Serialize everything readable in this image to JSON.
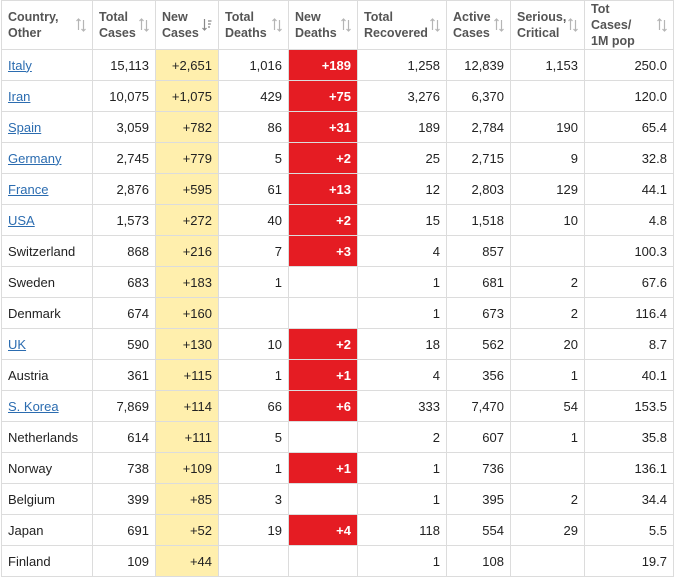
{
  "colors": {
    "new_cases_bg": "#ffefad",
    "new_deaths_bg": "#e51c23",
    "link": "#2b6cb0",
    "border": "#dcdcdc"
  },
  "headers": [
    {
      "line1": "Country,",
      "line2": "Other",
      "icon": "sort-arrows-icon"
    },
    {
      "line1": "Total",
      "line2": "Cases",
      "icon": "sort-arrows-icon"
    },
    {
      "line1": "New",
      "line2": "Cases",
      "icon": "sort-descending-icon"
    },
    {
      "line1": "Total",
      "line2": "Deaths",
      "icon": "sort-arrows-icon"
    },
    {
      "line1": "New",
      "line2": "Deaths",
      "icon": "sort-arrows-icon"
    },
    {
      "line1": "Total",
      "line2": "Recovered",
      "icon": "sort-arrows-icon"
    },
    {
      "line1": "Active",
      "line2": "Cases",
      "icon": "sort-arrows-icon"
    },
    {
      "line1": "Serious,",
      "line2": "Critical",
      "icon": "sort-arrows-icon"
    },
    {
      "line1": "Tot Cases/",
      "line2": "1M pop",
      "icon": "sort-arrows-icon"
    }
  ],
  "rows": [
    {
      "country": "Italy",
      "link": true,
      "total_cases": "15,113",
      "new_cases": "+2,651",
      "total_deaths": "1,016",
      "new_deaths": "+189",
      "recovered": "1,258",
      "active": "12,839",
      "serious": "1,153",
      "per_million": "250.0"
    },
    {
      "country": "Iran",
      "link": true,
      "total_cases": "10,075",
      "new_cases": "+1,075",
      "total_deaths": "429",
      "new_deaths": "+75",
      "recovered": "3,276",
      "active": "6,370",
      "serious": "",
      "per_million": "120.0"
    },
    {
      "country": "Spain",
      "link": true,
      "total_cases": "3,059",
      "new_cases": "+782",
      "total_deaths": "86",
      "new_deaths": "+31",
      "recovered": "189",
      "active": "2,784",
      "serious": "190",
      "per_million": "65.4"
    },
    {
      "country": "Germany",
      "link": true,
      "total_cases": "2,745",
      "new_cases": "+779",
      "total_deaths": "5",
      "new_deaths": "+2",
      "recovered": "25",
      "active": "2,715",
      "serious": "9",
      "per_million": "32.8"
    },
    {
      "country": "France",
      "link": true,
      "total_cases": "2,876",
      "new_cases": "+595",
      "total_deaths": "61",
      "new_deaths": "+13",
      "recovered": "12",
      "active": "2,803",
      "serious": "129",
      "per_million": "44.1"
    },
    {
      "country": "USA",
      "link": true,
      "total_cases": "1,573",
      "new_cases": "+272",
      "total_deaths": "40",
      "new_deaths": "+2",
      "recovered": "15",
      "active": "1,518",
      "serious": "10",
      "per_million": "4.8"
    },
    {
      "country": "Switzerland",
      "link": false,
      "total_cases": "868",
      "new_cases": "+216",
      "total_deaths": "7",
      "new_deaths": "+3",
      "recovered": "4",
      "active": "857",
      "serious": "",
      "per_million": "100.3"
    },
    {
      "country": "Sweden",
      "link": false,
      "total_cases": "683",
      "new_cases": "+183",
      "total_deaths": "1",
      "new_deaths": "",
      "recovered": "1",
      "active": "681",
      "serious": "2",
      "per_million": "67.6"
    },
    {
      "country": "Denmark",
      "link": false,
      "total_cases": "674",
      "new_cases": "+160",
      "total_deaths": "",
      "new_deaths": "",
      "recovered": "1",
      "active": "673",
      "serious": "2",
      "per_million": "116.4"
    },
    {
      "country": "UK",
      "link": true,
      "total_cases": "590",
      "new_cases": "+130",
      "total_deaths": "10",
      "new_deaths": "+2",
      "recovered": "18",
      "active": "562",
      "serious": "20",
      "per_million": "8.7"
    },
    {
      "country": "Austria",
      "link": false,
      "total_cases": "361",
      "new_cases": "+115",
      "total_deaths": "1",
      "new_deaths": "+1",
      "recovered": "4",
      "active": "356",
      "serious": "1",
      "per_million": "40.1"
    },
    {
      "country": "S. Korea",
      "link": true,
      "total_cases": "7,869",
      "new_cases": "+114",
      "total_deaths": "66",
      "new_deaths": "+6",
      "recovered": "333",
      "active": "7,470",
      "serious": "54",
      "per_million": "153.5"
    },
    {
      "country": "Netherlands",
      "link": false,
      "total_cases": "614",
      "new_cases": "+111",
      "total_deaths": "5",
      "new_deaths": "",
      "recovered": "2",
      "active": "607",
      "serious": "1",
      "per_million": "35.8"
    },
    {
      "country": "Norway",
      "link": false,
      "total_cases": "738",
      "new_cases": "+109",
      "total_deaths": "1",
      "new_deaths": "+1",
      "recovered": "1",
      "active": "736",
      "serious": "",
      "per_million": "136.1"
    },
    {
      "country": "Belgium",
      "link": false,
      "total_cases": "399",
      "new_cases": "+85",
      "total_deaths": "3",
      "new_deaths": "",
      "recovered": "1",
      "active": "395",
      "serious": "2",
      "per_million": "34.4"
    },
    {
      "country": "Japan",
      "link": false,
      "total_cases": "691",
      "new_cases": "+52",
      "total_deaths": "19",
      "new_deaths": "+4",
      "recovered": "118",
      "active": "554",
      "serious": "29",
      "per_million": "5.5"
    },
    {
      "country": "Finland",
      "link": false,
      "total_cases": "109",
      "new_cases": "+44",
      "total_deaths": "",
      "new_deaths": "",
      "recovered": "1",
      "active": "108",
      "serious": "",
      "per_million": "19.7"
    }
  ]
}
